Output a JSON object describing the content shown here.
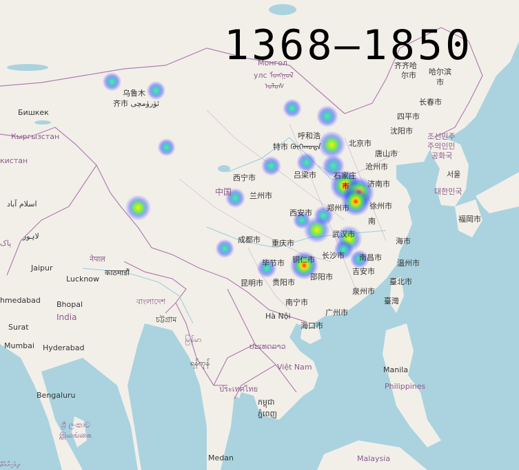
{
  "title": "1368–1850",
  "map_labels": {
    "urumqi1": "乌鲁木",
    "urumqi2": "齐市 ئۈرۈمچى",
    "bishkek": "Бишкек",
    "kyrgyzstan": "Кыргызстан",
    "kistan": "кистан",
    "mongolia1": "Монгол",
    "mongolia2": "улс ᠮᠣᠩᠭᠣᠯ",
    "mongolia3": "ᠤᠯᠤᠰ",
    "qiqihar1": "齐齐哈",
    "qiqihar2": "尔市",
    "harbin1": "哈尔滨",
    "harbin2": "市",
    "changchun": "长春市",
    "siping": "四平市",
    "shenyang": "沈阳市",
    "hohhot1": "呼和浩",
    "hohhot2": "特市 ᠬᠥᠬᠡᠬᠣᠲᠠ",
    "beijing": "北京市",
    "tangshan": "唐山市",
    "cangzhou": "沧州市",
    "shijiazhuang1": "石家庄",
    "shijiazhuang2": "市",
    "jinan": "济南市",
    "luliang": "吕梁市",
    "xining": "西宁市",
    "lanzhou": "兰州市",
    "china": "中国",
    "xian": "西安市",
    "zhengzhou": "郑州市",
    "xuzhou": "徐州市",
    "nanjing": "南",
    "shanghai": "海市",
    "wuhan": "武汉市",
    "chengdu": "成都市",
    "chongqing": "重庆市",
    "changsha": "长沙市",
    "nanchang": "南昌市",
    "wenzhou": "温州市",
    "bijie": "毕节市",
    "tongren": "铜仁市",
    "ji_an": "吉安市",
    "shaoyang": "邵阳市",
    "taipei": "臺北市",
    "kunming": "昆明市",
    "guiyang": "贵阳市",
    "quanzhou": "泉州市",
    "taiwan": "臺灣",
    "nanning": "南宁市",
    "guangzhou": "广州市",
    "hanoi": "Hà Nội",
    "haikou": "海口市",
    "korea_n1": "조선민주",
    "korea_n2": "주의인민",
    "korea_n3": "공화국",
    "seoul": "서울",
    "korea_s": "대한민국",
    "fukuoka": "福岡市",
    "islamabad": "اسلام آباد",
    "lahore": "لاہور",
    "pakistan": "پاک",
    "nepal": "नेपाल",
    "kathmandu": "काठमाडौं",
    "jaipur": "Jaipur",
    "lucknow": "Lucknow",
    "ahmedabad": "hmedabad",
    "bhopal": "Bhopal",
    "india": "India",
    "bangladesh": "বাংলাদেশ",
    "chittagong": "চট্টগ্রাম",
    "surat": "Surat",
    "mumbai": "Mumbai",
    "hyderabad": "Hyderabad",
    "myanmar": "မြန်မာ",
    "naypyidaw": "ရန်ကုန်",
    "laos": "ປະເທດລາວ",
    "vietnam": "Việt Nam",
    "thailand": "ประเทศไทย",
    "cambodia1": "កម្ពុជា",
    "cambodia2": "ភ្នំពេញ",
    "manila": "Manila",
    "philippines": "Philippines",
    "bengaluru": "Bengaluru",
    "srilanka1": "ශ්‍රී ලංකාව",
    "srilanka2": "இலங்கை",
    "maldives": "ދިވެހިރާއްޖޭ",
    "medan": "Medan",
    "malaysia": "Malaysia"
  },
  "heat_points": [
    {
      "name": "urumqi",
      "lon": 87.6,
      "lat": 43.8,
      "intensity": 0.35
    },
    {
      "name": "hami",
      "lon": 93.5,
      "lat": 42.8,
      "intensity": 0.35
    },
    {
      "name": "golmud",
      "lon": 94.9,
      "lat": 36.4,
      "intensity": 0.3
    },
    {
      "name": "lhasa",
      "lon": 91.1,
      "lat": 29.6,
      "intensity": 0.7
    },
    {
      "name": "chengdu",
      "lon": 104.1,
      "lat": 30.7,
      "intensity": 0.4
    },
    {
      "name": "kunming",
      "lon": 102.7,
      "lat": 25.0,
      "intensity": 0.35
    },
    {
      "name": "nanning",
      "lon": 108.3,
      "lat": 22.8,
      "intensity": 0.4
    },
    {
      "name": "guangzhou",
      "lon": 113.3,
      "lat": 23.1,
      "intensity": 0.85
    },
    {
      "name": "hohhot",
      "lon": 111.7,
      "lat": 40.8,
      "intensity": 0.35
    },
    {
      "name": "beijing",
      "lon": 116.4,
      "lat": 39.9,
      "intensity": 0.5
    },
    {
      "name": "jinan",
      "lon": 117.0,
      "lat": 36.7,
      "intensity": 0.8
    },
    {
      "name": "zhengzhou",
      "lon": 113.6,
      "lat": 34.7,
      "intensity": 0.4
    },
    {
      "name": "xian",
      "lon": 108.9,
      "lat": 34.3,
      "intensity": 0.4
    },
    {
      "name": "xuzhou",
      "lon": 117.2,
      "lat": 34.3,
      "intensity": 0.55
    },
    {
      "name": "nanjing",
      "lon": 118.8,
      "lat": 32.1,
      "intensity": 0.95
    },
    {
      "name": "suzhou",
      "lon": 120.6,
      "lat": 31.3,
      "intensity": 1.0
    },
    {
      "name": "hangzhou",
      "lon": 120.2,
      "lat": 30.3,
      "intensity": 0.9
    },
    {
      "name": "nanchang",
      "lon": 115.9,
      "lat": 28.7,
      "intensity": 0.4
    },
    {
      "name": "ji_an",
      "lon": 115.0,
      "lat": 27.1,
      "intensity": 0.75
    },
    {
      "name": "fuzhou",
      "lon": 119.3,
      "lat": 26.1,
      "intensity": 0.75
    },
    {
      "name": "quanzhou",
      "lon": 118.6,
      "lat": 24.9,
      "intensity": 0.4
    },
    {
      "name": "taiwan",
      "lon": 120.7,
      "lat": 23.8,
      "intensity": 0.35
    },
    {
      "name": "changsha",
      "lon": 113.0,
      "lat": 28.2,
      "intensity": 0.3
    }
  ],
  "colors": {
    "water": "#aad3df",
    "land": "#f2efe9",
    "border": "#b07fb0",
    "heat_hot": "#ff2a00",
    "heat_cool": "#3333ff"
  }
}
